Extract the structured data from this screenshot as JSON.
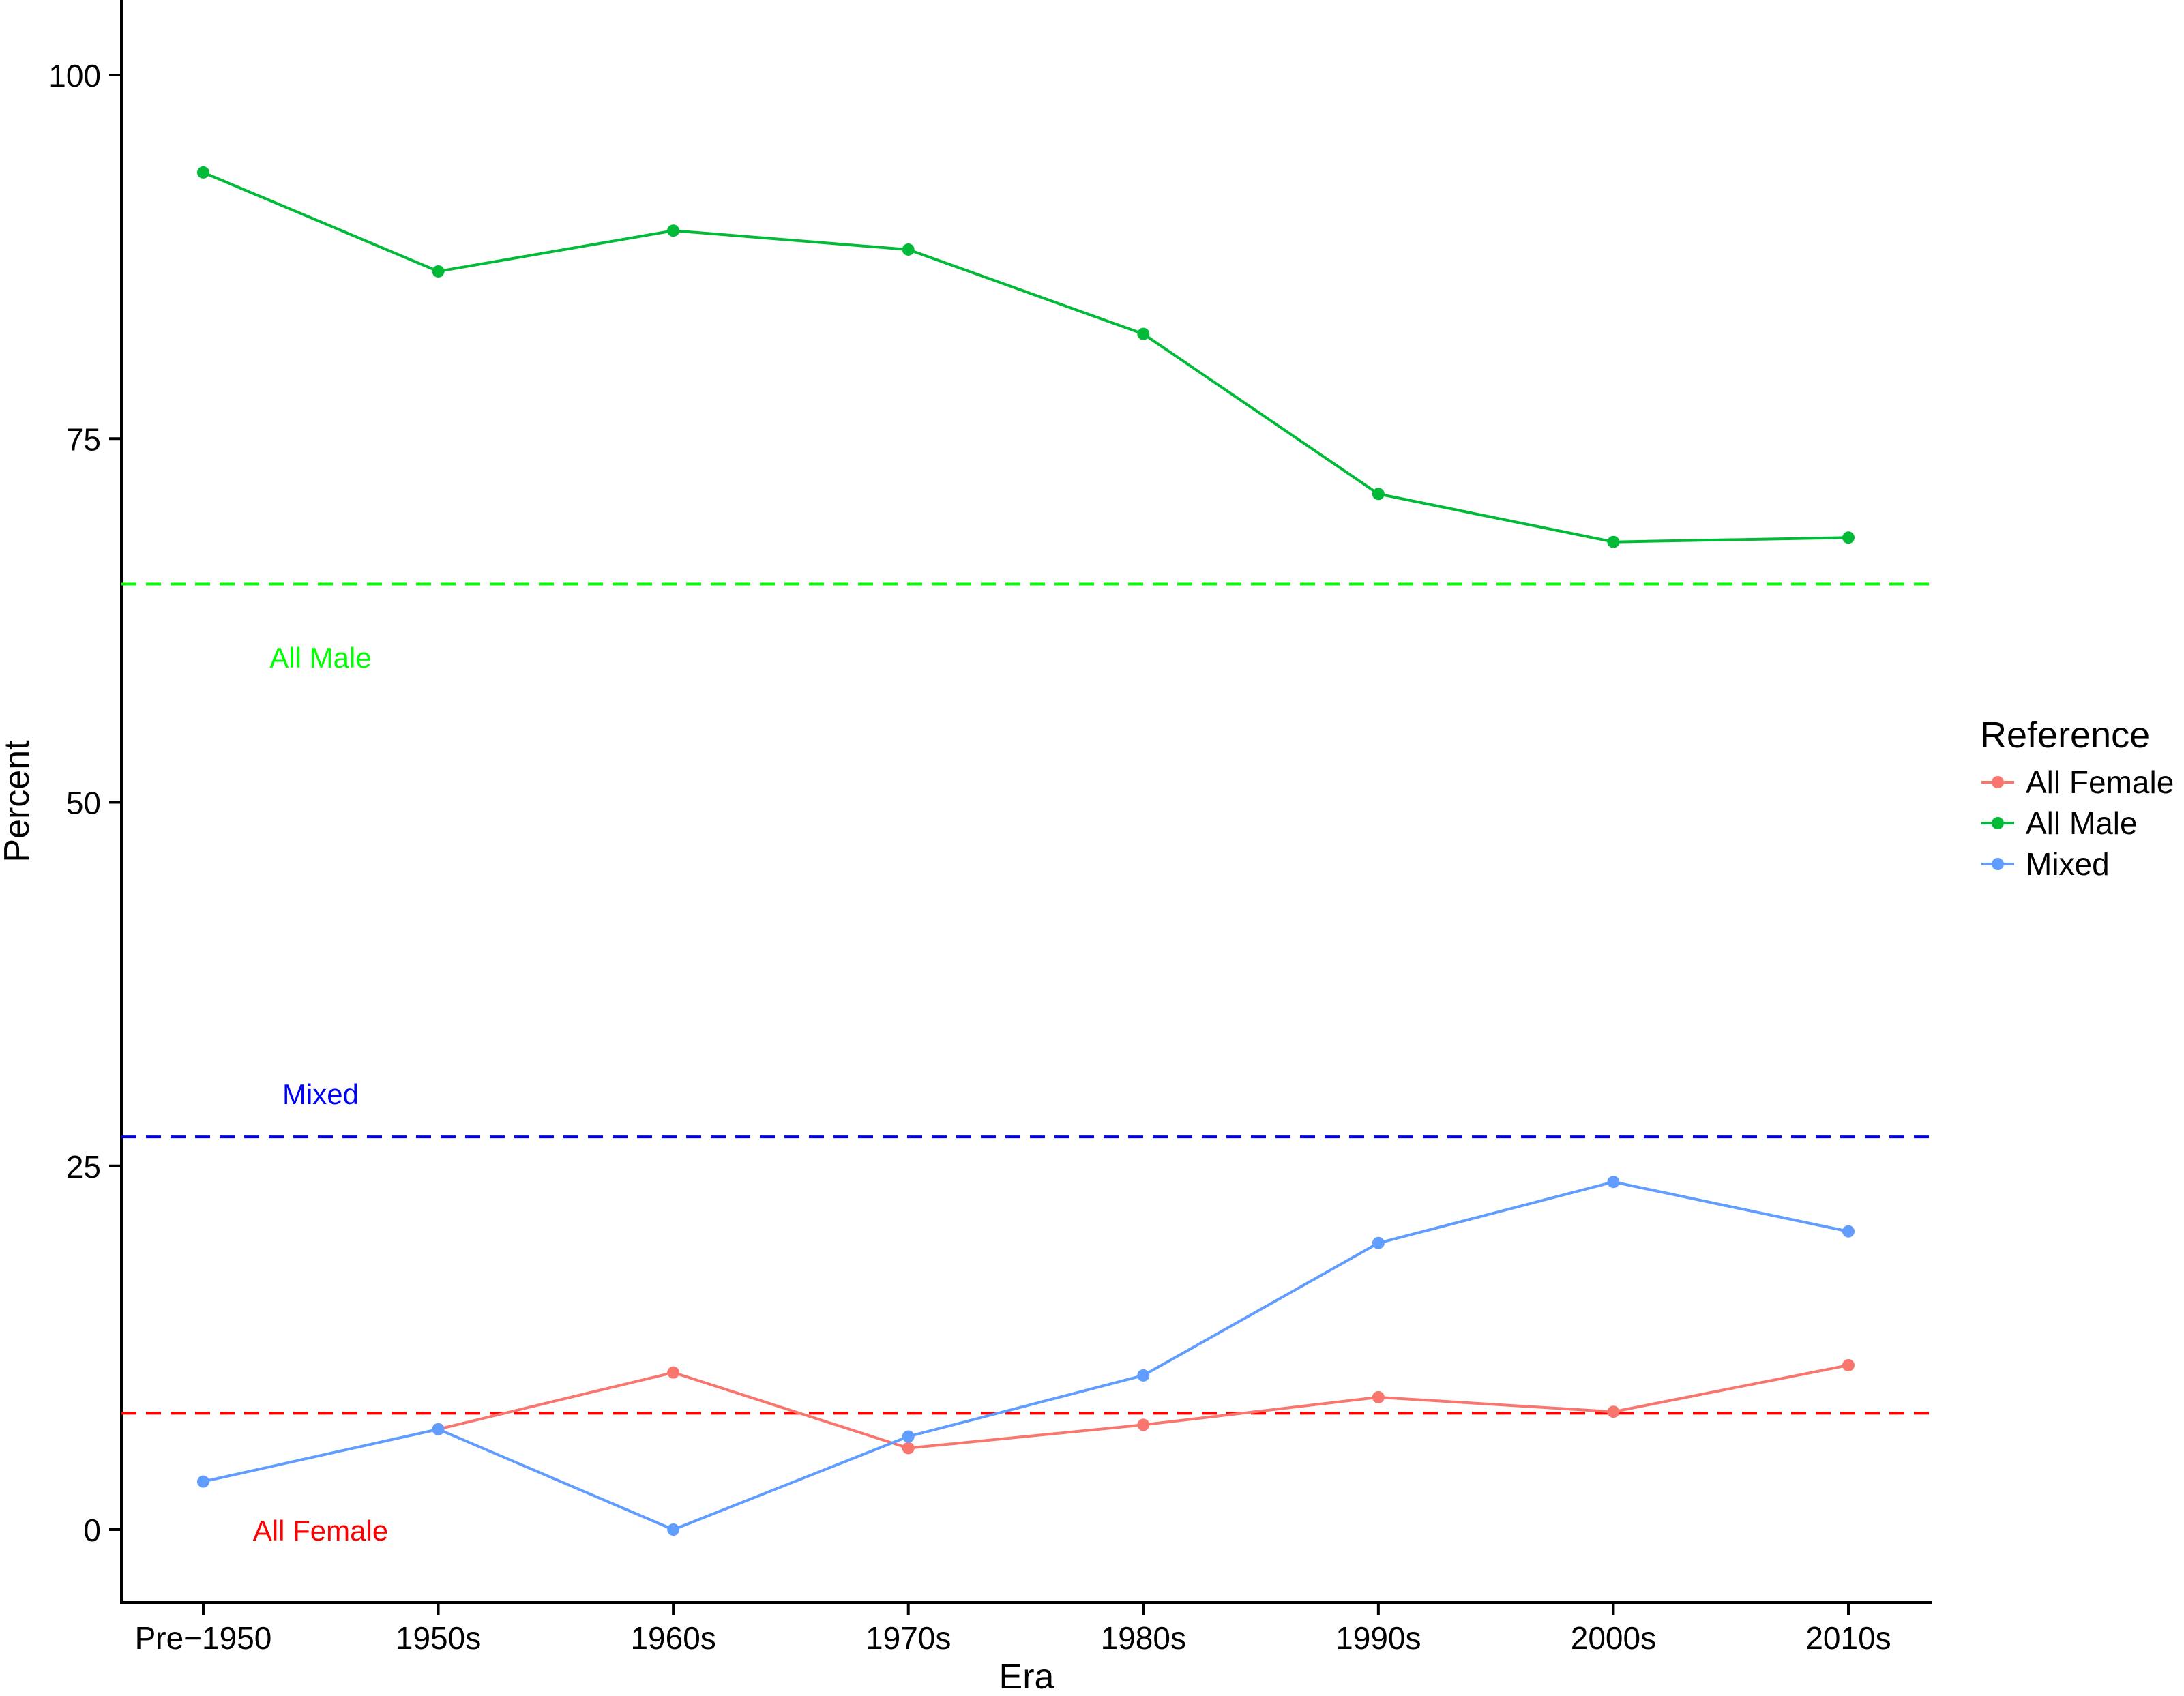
{
  "chart_data": {
    "type": "line",
    "title": "",
    "xlabel": "Era",
    "ylabel": "Percent",
    "categories": [
      "Pre−1950",
      "1950s",
      "1960s",
      "1970s",
      "1980s",
      "1990s",
      "2000s",
      "2010s"
    ],
    "ylim": [
      -5,
      105
    ],
    "yticks": [
      0,
      25,
      50,
      75,
      100
    ],
    "grid": false,
    "legend": {
      "title": "Reference",
      "placement": "right"
    },
    "series": [
      {
        "name": "All Female",
        "color": "#F8766D",
        "values": [
          null,
          6.9,
          10.8,
          5.6,
          7.2,
          9.1,
          8.1,
          11.3
        ]
      },
      {
        "name": "All Male",
        "color": "#00BA38",
        "values": [
          93.3,
          86.5,
          89.3,
          88.0,
          82.2,
          71.2,
          67.9,
          68.2
        ]
      },
      {
        "name": "Mixed",
        "color": "#619CFF",
        "values": [
          3.3,
          6.9,
          0.0,
          6.4,
          10.6,
          19.7,
          23.9,
          20.5
        ]
      }
    ],
    "reference_lines": [
      {
        "label": "All Male",
        "value": 65.0,
        "color": "#00FF00",
        "label_y": 60.0
      },
      {
        "label": "Mixed",
        "value": 27.0,
        "color": "#0000FF",
        "label_y": 30.0
      },
      {
        "label": "All Female",
        "value": 8.0,
        "color": "#FF0000",
        "label_y": 0.0
      }
    ]
  }
}
